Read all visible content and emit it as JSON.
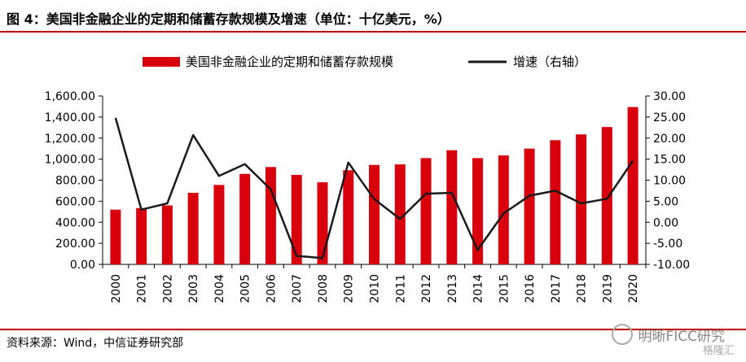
{
  "title": "图 4：美国非金融企业的定期和储蓄存款规模及增速（单位：十亿美元，%）",
  "source": "资料来源：Wind，中信证券研究部",
  "watermark": {
    "text": "明晰FICC研究",
    "sub": "格隆汇"
  },
  "colors": {
    "bar": "#d9000d",
    "line": "#1a1a1a",
    "accent": "#c00000"
  },
  "chart_data": {
    "type": "bar",
    "categories": [
      "2000",
      "2001",
      "2002",
      "2003",
      "2004",
      "2005",
      "2006",
      "2007",
      "2008",
      "2009",
      "2010",
      "2011",
      "2012",
      "2013",
      "2014",
      "2015",
      "2016",
      "2017",
      "2018",
      "2019",
      "2020"
    ],
    "series": [
      {
        "name": "美国非金融企业的定期和储蓄存款规模",
        "type": "bar",
        "axis": "left",
        "values": [
          520,
          535,
          560,
          680,
          755,
          860,
          925,
          850,
          780,
          895,
          945,
          950,
          1010,
          1085,
          1010,
          1035,
          1100,
          1180,
          1235,
          1305,
          1495
        ]
      },
      {
        "name": "增速（右轴）",
        "type": "line",
        "axis": "right",
        "values": [
          24.8,
          3.0,
          4.5,
          20.7,
          11.0,
          13.8,
          7.8,
          -8.0,
          -8.5,
          14.2,
          5.5,
          0.8,
          6.8,
          7.0,
          -6.6,
          2.1,
          6.3,
          7.5,
          4.5,
          5.6,
          14.6
        ]
      }
    ],
    "y_left": {
      "min": 0,
      "max": 1600,
      "step": 200,
      "tick_labels": [
        "0.00",
        "200.00",
        "400.00",
        "600.00",
        "800.00",
        "1,000.00",
        "1,200.00",
        "1,400.00",
        "1,600.00"
      ]
    },
    "y_right": {
      "min": -10,
      "max": 30,
      "step": 5,
      "tick_labels": [
        "-10.00",
        "-5.00",
        "0.00",
        "5.00",
        "10.00",
        "15.00",
        "20.00",
        "25.00",
        "30.00"
      ]
    },
    "legend_position": "top",
    "grid": false
  }
}
